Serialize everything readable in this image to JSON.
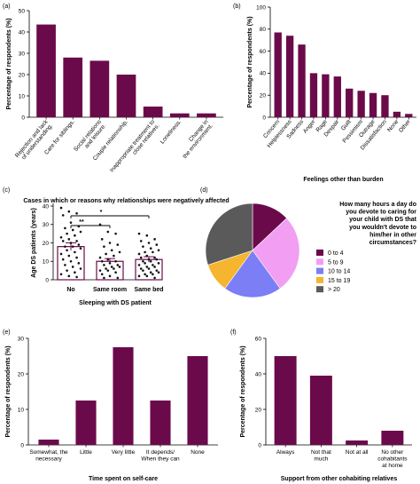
{
  "chart_data": [
    {
      "id": "a",
      "panel_label": "(a)",
      "type": "bar",
      "ylabel": "Percentage of respondents (%)",
      "xlabel": "Cases in which or reasons why relationships were negatively affected",
      "ylim": [
        0,
        50
      ],
      "yticks": [
        "0",
        "10",
        "20",
        "30",
        "40",
        "50"
      ],
      "categories": [
        "Rejection and lack of understanding.",
        "Care for siblings.",
        "Social relations and leisure.",
        "Couple relationship.",
        "Inappropriate treatment to close relatives.",
        "Loneliness.",
        "Change in the environment."
      ],
      "values": [
        43.5,
        28,
        26.5,
        20,
        5,
        1.8,
        1.8
      ],
      "color": "#6b0a4b"
    },
    {
      "id": "b",
      "panel_label": "(b)",
      "type": "bar",
      "ylabel": "Percentage of respondents (%)",
      "xlabel": "Feelings other than burden",
      "ylim": [
        0,
        100
      ],
      "yticks": [
        "0",
        "20",
        "40",
        "60",
        "80",
        "100"
      ],
      "categories": [
        "Concern",
        "Helplessness",
        "Sadness",
        "Anger",
        "Rage",
        "Despair",
        "Guilt",
        "Pessimism",
        "Outrage",
        "Dissatisfaction",
        "None",
        "Other"
      ],
      "values": [
        77,
        74,
        66,
        40,
        39,
        37,
        26,
        24,
        22,
        20,
        5,
        3
      ],
      "color": "#6b0a4b"
    },
    {
      "id": "c",
      "panel_label": "(c)",
      "type": "scatter",
      "ylabel": "Age DS patients (years)",
      "xlabel": "Sleeping with DS patient",
      "ylim": [
        0,
        40
      ],
      "yticks": [
        "0",
        "10",
        "20",
        "30",
        "40"
      ],
      "categories": [
        "No",
        "Same room",
        "Same bed"
      ],
      "means": [
        18,
        10,
        11
      ],
      "sem": [
        2,
        1.5,
        1.5
      ],
      "significance": [
        "*",
        "**"
      ],
      "series": [
        {
          "values": [
            39,
            37,
            36,
            35,
            31,
            29,
            28,
            27,
            26,
            25,
            24,
            23,
            22,
            21,
            21,
            20,
            19,
            18,
            18,
            17,
            16,
            15,
            14,
            13,
            12,
            11,
            10,
            9,
            8,
            7,
            6,
            5,
            4,
            3,
            2,
            1.5
          ]
        },
        {
          "values": [
            30,
            26,
            25,
            22,
            20,
            19,
            18,
            16,
            15,
            14,
            13,
            12,
            11,
            10,
            10,
            9,
            8,
            8,
            7,
            7,
            6,
            6,
            5,
            5,
            4,
            3,
            2,
            1,
            1
          ]
        },
        {
          "values": [
            25,
            24,
            22,
            21,
            20,
            19,
            18,
            17,
            16,
            15,
            15,
            14,
            13,
            12,
            12,
            11,
            11,
            10,
            10,
            9,
            9,
            8,
            8,
            7,
            7,
            6,
            6,
            5,
            5,
            4,
            4,
            3,
            3,
            2,
            2,
            1
          ]
        }
      ],
      "color": "#6b0a4b"
    },
    {
      "id": "d",
      "panel_label": "(d)",
      "type": "pie",
      "title": "How many hours a day do you devote to caring for your child with DS that you wouldn't devote to him/her in other circumstances?",
      "categories": [
        "0 to 4",
        "5 to 9",
        "10 to 14",
        "15 to 19",
        "> 20"
      ],
      "values": [
        13,
        27,
        20,
        10,
        30
      ],
      "colors": [
        "#6b0a4b",
        "#f29ef3",
        "#7b7ef5",
        "#f5b52e",
        "#5a5a5a"
      ]
    },
    {
      "id": "e",
      "panel_label": "(e)",
      "type": "bar",
      "ylabel": "Percentage of respondents (%)",
      "xlabel": "Time spent on self-care",
      "ylim": [
        0,
        30
      ],
      "yticks": [
        "0",
        "10",
        "20",
        "30"
      ],
      "categories": [
        "Somewhat, the necessary",
        "Little",
        "Very little",
        "It depends/ When they can",
        "None"
      ],
      "values": [
        1.5,
        12.5,
        27.5,
        12.5,
        25
      ],
      "color": "#6b0a4b"
    },
    {
      "id": "f",
      "panel_label": "(f)",
      "type": "bar",
      "ylabel": "Percentage of respondents (%)",
      "xlabel": "Support from other cohabiting relatives",
      "ylim": [
        0,
        60
      ],
      "yticks": [
        "0",
        "20",
        "40",
        "60"
      ],
      "categories": [
        "Always",
        "Not that much",
        "Not at all",
        "No other cohabitants at home"
      ],
      "values": [
        50,
        39,
        2.5,
        8
      ],
      "color": "#6b0a4b"
    }
  ]
}
